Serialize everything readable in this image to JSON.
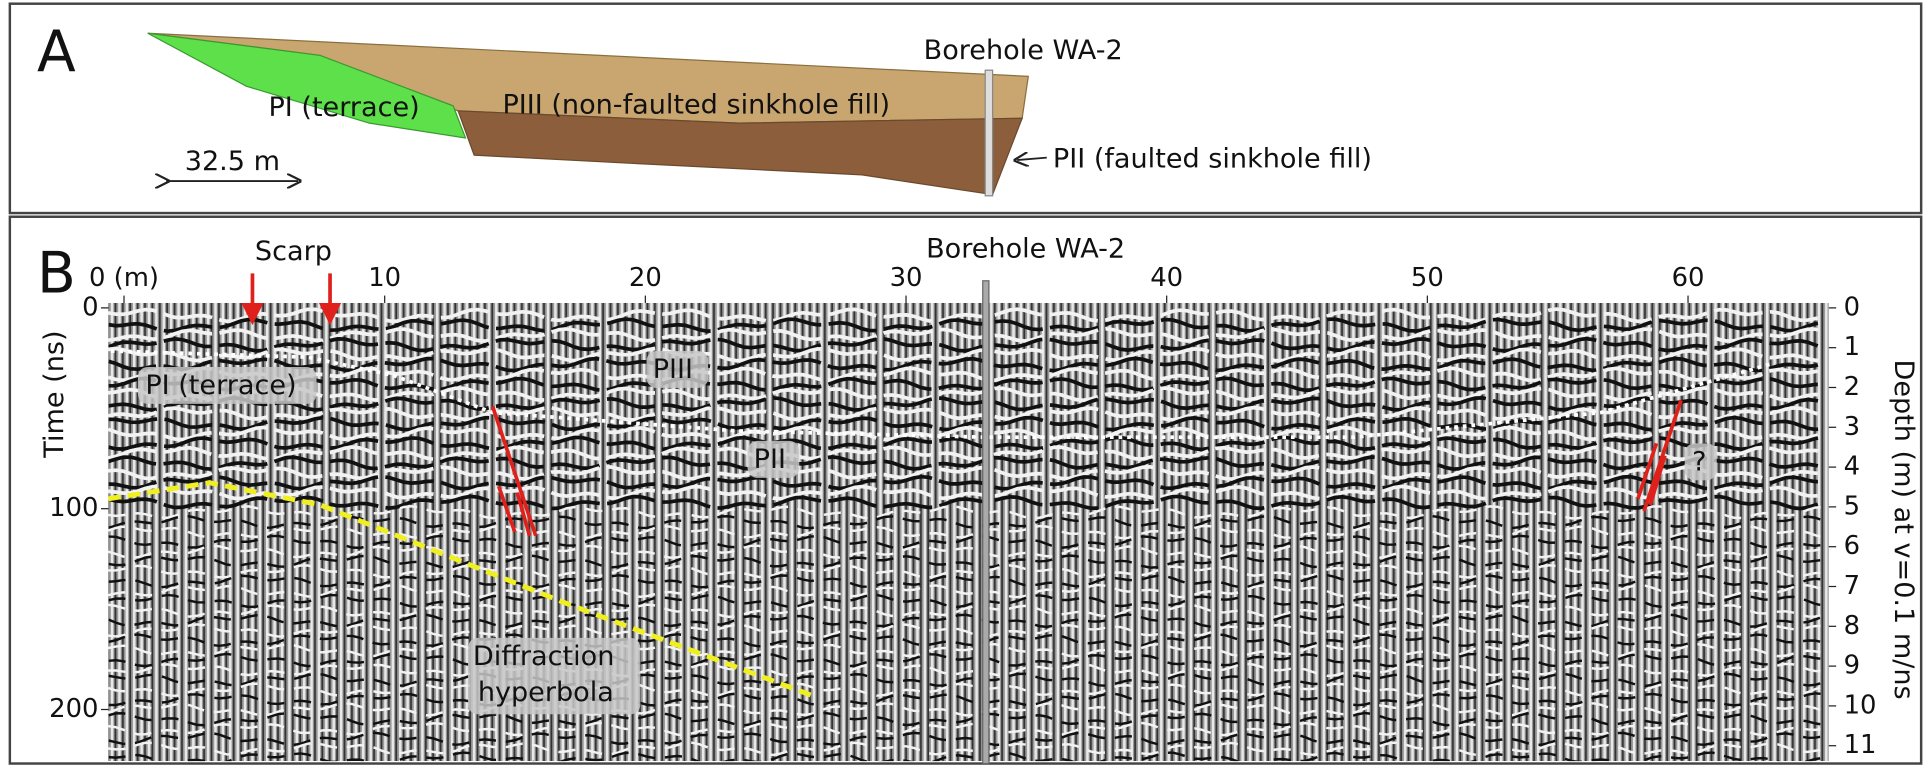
{
  "panel_a": {
    "label": "A",
    "borehole": "Borehole WA-2",
    "units": {
      "pi": "PI (terrace)",
      "piii": "PIII (non-faulted sinkhole fill)",
      "pii": "PII (faulted sinkhole fill)"
    },
    "scale_bar": "32.5 m"
  },
  "panel_b": {
    "label": "B",
    "scarp": "Scarp",
    "borehole": "Borehole WA-2",
    "x_axis": {
      "lim": [
        -0.6,
        65.4
      ],
      "ticks": [
        {
          "value": 0,
          "label": "0 (m)"
        },
        10,
        20,
        30,
        40,
        50,
        60
      ]
    },
    "time_axis": {
      "title": "Time (ns)",
      "lim": [
        0,
        222
      ],
      "ticks": [
        0,
        100,
        200
      ]
    },
    "depth_axis": {
      "title": "Depth (m) at v=0.1 m/ns",
      "lim": [
        0,
        11.2
      ],
      "ticks": [
        0,
        1,
        2,
        3,
        4,
        5,
        6,
        7,
        8,
        9,
        10,
        11
      ]
    },
    "annotations": {
      "pi": "PI (terrace)",
      "piii": "PIII",
      "pii": "PII",
      "question": "?",
      "diffraction": [
        "Diffraction",
        "hyperbola"
      ]
    }
  }
}
